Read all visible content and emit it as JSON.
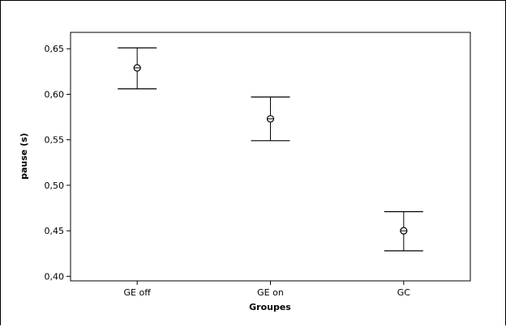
{
  "chart_data": {
    "type": "interval",
    "categories": [
      "GE off",
      "GE on",
      "GC"
    ],
    "series": [
      {
        "mean": [
          0.629,
          0.573,
          0.45
        ],
        "lower": [
          0.606,
          0.549,
          0.428
        ],
        "upper": [
          0.651,
          0.597,
          0.471
        ]
      }
    ],
    "xlabel": "Groupes",
    "ylabel": "pause (s)",
    "ylim": [
      0.395,
      0.668
    ],
    "yticks": [
      0.4,
      0.45,
      0.5,
      0.55,
      0.6,
      0.65
    ],
    "ytick_labels": [
      "0,40",
      "0,45",
      "0,50",
      "0,55",
      "0,60",
      "0,65"
    ],
    "grid": false,
    "legend": "none",
    "colors": {
      "marks": "#000000",
      "background": "#ffffff"
    }
  }
}
